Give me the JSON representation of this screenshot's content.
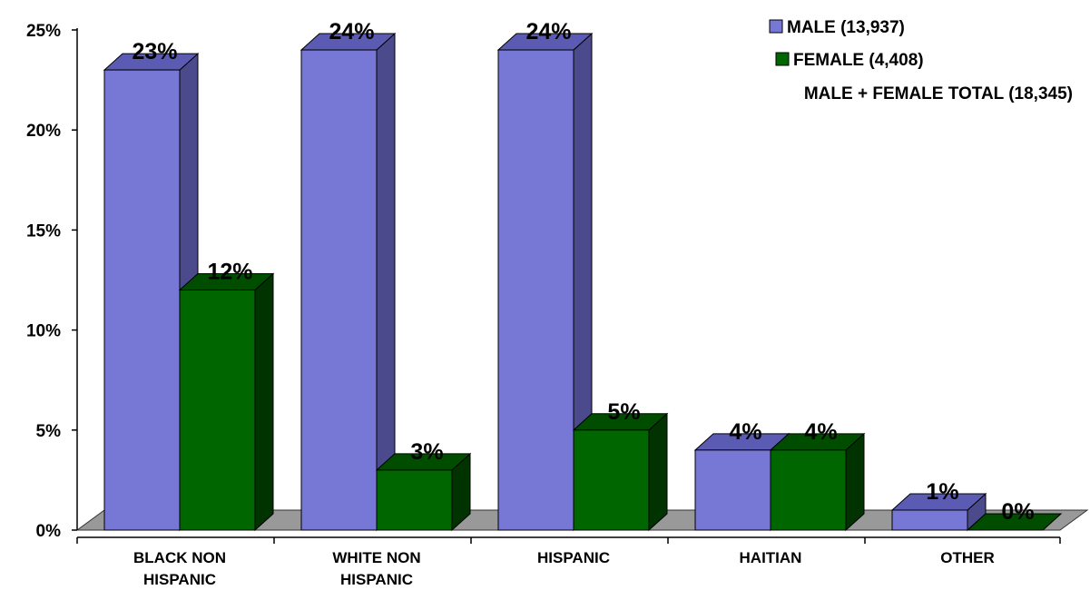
{
  "chart_data": {
    "type": "bar",
    "style": "3d-clustered",
    "categories": [
      [
        "BLACK NON",
        "HISPANIC"
      ],
      [
        "WHITE NON",
        "HISPANIC"
      ],
      [
        "HISPANIC"
      ],
      [
        "HAITIAN"
      ],
      [
        "OTHER"
      ]
    ],
    "series": [
      {
        "name": "MALE (13,937)",
        "values": [
          23,
          24,
          24,
          4,
          1
        ],
        "labels": [
          "23%",
          "24%",
          "24%",
          "4%",
          "1%"
        ],
        "color": "#7777d6",
        "side_color": "#4a4a8c",
        "top_color": "#5b5bb4"
      },
      {
        "name": "FEMALE (4,408)",
        "values": [
          12,
          3,
          5,
          4,
          0
        ],
        "labels": [
          "12%",
          "3%",
          "5%",
          "4%",
          "0%"
        ],
        "color": "#006600",
        "side_color": "#003300",
        "top_color": "#004d00"
      }
    ],
    "legend": {
      "position": "top-right",
      "note": "MALE + FEMALE TOTAL (18,345)"
    },
    "y_ticks": [
      "0%",
      "5%",
      "10%",
      "15%",
      "20%",
      "25%"
    ],
    "ylim": [
      0,
      25
    ],
    "grid": false,
    "floor_color": "#999999"
  }
}
